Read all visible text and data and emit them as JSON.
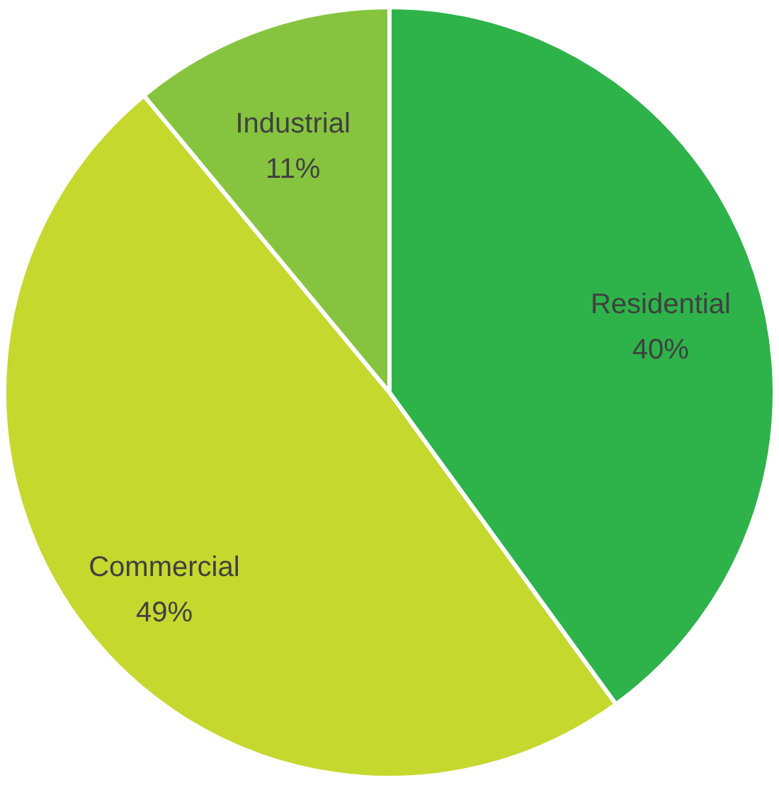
{
  "chart_data": {
    "type": "pie",
    "categories": [
      "Residential",
      "Commercial",
      "Industrial"
    ],
    "values": [
      40,
      49,
      11
    ],
    "value_labels": [
      "40%",
      "49%",
      "11%"
    ],
    "colors": [
      "#2db34a",
      "#c5d82e",
      "#86c440"
    ]
  }
}
